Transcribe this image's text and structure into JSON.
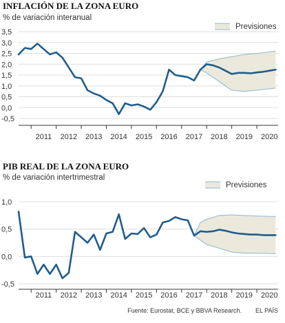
{
  "colors": {
    "line": "#1f5c8c",
    "band_fill": "#ebe9dc",
    "band_stroke": "#8fb6cd",
    "grid": "#dddddd",
    "axis": "#333333"
  },
  "footer": {
    "source": "Fuente: Eurostat, BCE y BBVA Research.",
    "brand": "EL PAÍS"
  },
  "chart_data": [
    {
      "type": "line",
      "title": "INFLACIÓN DE LA ZONA EURO",
      "subtitle": "% de variación interanual",
      "legend_label": "Previsiones",
      "legend_position": "top-right",
      "grid": true,
      "x_ticks": [
        "2011",
        "2012",
        "2013",
        "2014",
        "2015",
        "2016",
        "2017",
        "2018",
        "2019",
        "2020"
      ],
      "xlim": [
        2010.5,
        2020.85
      ],
      "ylim": [
        -0.5,
        3.5
      ],
      "y_ticks": [
        "3,5",
        "3,0",
        "2,5",
        "2,0",
        "1,5",
        "1,0",
        "0,5",
        "0,0",
        "-0,5"
      ],
      "y_tick_values": [
        3.5,
        3.0,
        2.5,
        2.0,
        1.5,
        1.0,
        0.5,
        0.0,
        -0.5
      ],
      "series": [
        {
          "values": [
            [
              2010.5,
              2.45
            ],
            [
              2010.75,
              2.75
            ],
            [
              2011.0,
              2.7
            ],
            [
              2011.25,
              2.95
            ],
            [
              2011.5,
              2.7
            ],
            [
              2011.75,
              2.45
            ],
            [
              2012.0,
              2.55
            ],
            [
              2012.25,
              2.3
            ],
            [
              2012.5,
              1.85
            ],
            [
              2012.75,
              1.4
            ],
            [
              2013.0,
              1.35
            ],
            [
              2013.25,
              0.8
            ],
            [
              2013.5,
              0.65
            ],
            [
              2013.75,
              0.55
            ],
            [
              2014.0,
              0.35
            ],
            [
              2014.25,
              0.2
            ],
            [
              2014.5,
              -0.3
            ],
            [
              2014.75,
              0.2
            ],
            [
              2015.0,
              0.1
            ],
            [
              2015.25,
              0.15
            ],
            [
              2015.5,
              0.05
            ],
            [
              2015.75,
              -0.1
            ],
            [
              2016.0,
              0.25
            ],
            [
              2016.25,
              0.75
            ],
            [
              2016.5,
              1.75
            ],
            [
              2016.75,
              1.5
            ],
            [
              2017.0,
              1.45
            ],
            [
              2017.25,
              1.4
            ],
            [
              2017.5,
              1.25
            ],
            [
              2017.75,
              1.75
            ],
            [
              2018.0,
              2.0
            ],
            [
              2018.25,
              1.95
            ],
            [
              2018.5,
              1.85
            ],
            [
              2018.75,
              1.7
            ],
            [
              2019.0,
              1.55
            ],
            [
              2019.25,
              1.6
            ],
            [
              2019.5,
              1.6
            ],
            [
              2019.75,
              1.58
            ],
            [
              2020.0,
              1.62
            ],
            [
              2020.25,
              1.65
            ],
            [
              2020.5,
              1.7
            ],
            [
              2020.75,
              1.75
            ]
          ]
        }
      ],
      "forecast_band": {
        "upper": [
          [
            2017.75,
            1.75
          ],
          [
            2018.0,
            2.1
          ],
          [
            2018.5,
            2.25
          ],
          [
            2019.0,
            2.35
          ],
          [
            2019.5,
            2.45
          ],
          [
            2020.0,
            2.5
          ],
          [
            2020.75,
            2.6
          ]
        ],
        "lower": [
          [
            2017.75,
            1.75
          ],
          [
            2018.0,
            1.6
          ],
          [
            2018.5,
            1.2
          ],
          [
            2019.0,
            0.8
          ],
          [
            2019.5,
            0.75
          ],
          [
            2020.0,
            0.8
          ],
          [
            2020.75,
            0.9
          ]
        ]
      }
    },
    {
      "type": "line",
      "title": "PIB REAL DE LA ZONA EURO",
      "subtitle": "% de variación intertrimestral",
      "legend_label": "Previsiones",
      "legend_position": "top-right",
      "grid": true,
      "x_ticks": [
        "2011",
        "2012",
        "2013",
        "2014",
        "2015",
        "2016",
        "2017",
        "2018",
        "2019",
        "2020"
      ],
      "xlim": [
        2010.5,
        2020.85
      ],
      "ylim": [
        -0.5,
        1.0
      ],
      "y_ticks": [
        "1,0",
        "0,5",
        "0,0",
        "-0,5"
      ],
      "y_tick_values": [
        1.0,
        0.5,
        0.0,
        -0.5
      ],
      "series": [
        {
          "values": [
            [
              2010.5,
              0.82
            ],
            [
              2010.75,
              -0.02
            ],
            [
              2011.0,
              0.0
            ],
            [
              2011.25,
              -0.32
            ],
            [
              2011.5,
              -0.15
            ],
            [
              2011.75,
              -0.32
            ],
            [
              2012.0,
              -0.15
            ],
            [
              2012.25,
              -0.4
            ],
            [
              2012.5,
              -0.3
            ],
            [
              2012.75,
              0.45
            ],
            [
              2013.0,
              0.35
            ],
            [
              2013.25,
              0.25
            ],
            [
              2013.5,
              0.4
            ],
            [
              2013.75,
              0.12
            ],
            [
              2014.0,
              0.42
            ],
            [
              2014.25,
              0.45
            ],
            [
              2014.5,
              0.77
            ],
            [
              2014.75,
              0.32
            ],
            [
              2015.0,
              0.42
            ],
            [
              2015.25,
              0.41
            ],
            [
              2015.5,
              0.52
            ],
            [
              2015.75,
              0.35
            ],
            [
              2016.0,
              0.4
            ],
            [
              2016.25,
              0.62
            ],
            [
              2016.5,
              0.65
            ],
            [
              2016.75,
              0.72
            ],
            [
              2017.0,
              0.68
            ],
            [
              2017.25,
              0.66
            ],
            [
              2017.5,
              0.38
            ],
            [
              2017.75,
              0.46
            ],
            [
              2018.0,
              0.45
            ],
            [
              2018.25,
              0.46
            ],
            [
              2018.5,
              0.49
            ],
            [
              2018.75,
              0.47
            ],
            [
              2019.0,
              0.44
            ],
            [
              2019.25,
              0.42
            ],
            [
              2019.5,
              0.41
            ],
            [
              2019.75,
              0.4
            ],
            [
              2020.0,
              0.4
            ],
            [
              2020.25,
              0.39
            ],
            [
              2020.5,
              0.39
            ],
            [
              2020.75,
              0.39
            ]
          ]
        }
      ],
      "forecast_band": {
        "upper": [
          [
            2017.5,
            0.38
          ],
          [
            2017.75,
            0.62
          ],
          [
            2018.0,
            0.68
          ],
          [
            2018.5,
            0.75
          ],
          [
            2019.0,
            0.76
          ],
          [
            2019.5,
            0.75
          ],
          [
            2020.0,
            0.74
          ],
          [
            2020.75,
            0.73
          ]
        ],
        "lower": [
          [
            2017.5,
            0.38
          ],
          [
            2017.75,
            0.3
          ],
          [
            2018.0,
            0.22
          ],
          [
            2018.5,
            0.15
          ],
          [
            2019.0,
            0.08
          ],
          [
            2019.5,
            0.06
          ],
          [
            2020.0,
            0.06
          ],
          [
            2020.75,
            0.05
          ]
        ]
      }
    }
  ]
}
